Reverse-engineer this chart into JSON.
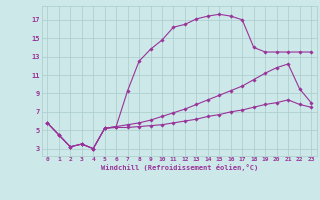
{
  "xlabel": "Windchill (Refroidissement éolien,°C)",
  "bg_color": "#cce8e8",
  "grid_color": "#aacccc",
  "line_color": "#993399",
  "xlim": [
    -0.5,
    23.5
  ],
  "ylim": [
    2.2,
    18.5
  ],
  "xticks": [
    0,
    1,
    2,
    3,
    4,
    5,
    6,
    7,
    8,
    9,
    10,
    11,
    12,
    13,
    14,
    15,
    16,
    17,
    18,
    19,
    20,
    21,
    22,
    23
  ],
  "yticks": [
    3,
    5,
    7,
    9,
    11,
    13,
    15,
    17
  ],
  "line1_x": [
    0,
    1,
    2,
    3,
    4,
    5,
    6,
    7,
    8,
    9,
    10,
    11,
    12,
    13,
    14,
    15,
    16,
    17,
    18,
    19,
    20,
    21,
    22,
    23
  ],
  "line1_y": [
    5.8,
    4.5,
    3.2,
    3.5,
    3.0,
    5.2,
    5.4,
    9.3,
    12.5,
    13.8,
    14.8,
    16.2,
    16.5,
    17.1,
    17.4,
    17.6,
    17.4,
    17.0,
    14.0,
    13.5,
    13.5,
    13.5,
    13.5,
    13.5
  ],
  "line2_x": [
    0,
    1,
    2,
    3,
    4,
    5,
    6,
    7,
    8,
    9,
    10,
    11,
    12,
    13,
    14,
    15,
    16,
    17,
    18,
    19,
    20,
    21,
    22,
    23
  ],
  "line2_y": [
    5.8,
    4.5,
    3.2,
    3.5,
    3.0,
    5.2,
    5.4,
    5.6,
    5.8,
    6.1,
    6.5,
    6.9,
    7.3,
    7.8,
    8.3,
    8.8,
    9.3,
    9.8,
    10.5,
    11.2,
    11.8,
    12.2,
    9.5,
    8.0
  ],
  "line3_x": [
    0,
    1,
    2,
    3,
    4,
    5,
    6,
    7,
    8,
    9,
    10,
    11,
    12,
    13,
    14,
    15,
    16,
    17,
    18,
    19,
    20,
    21,
    22,
    23
  ],
  "line3_y": [
    5.8,
    4.5,
    3.2,
    3.5,
    3.0,
    5.2,
    5.3,
    5.3,
    5.4,
    5.5,
    5.6,
    5.8,
    6.0,
    6.2,
    6.5,
    6.7,
    7.0,
    7.2,
    7.5,
    7.8,
    8.0,
    8.3,
    7.8,
    7.5
  ]
}
